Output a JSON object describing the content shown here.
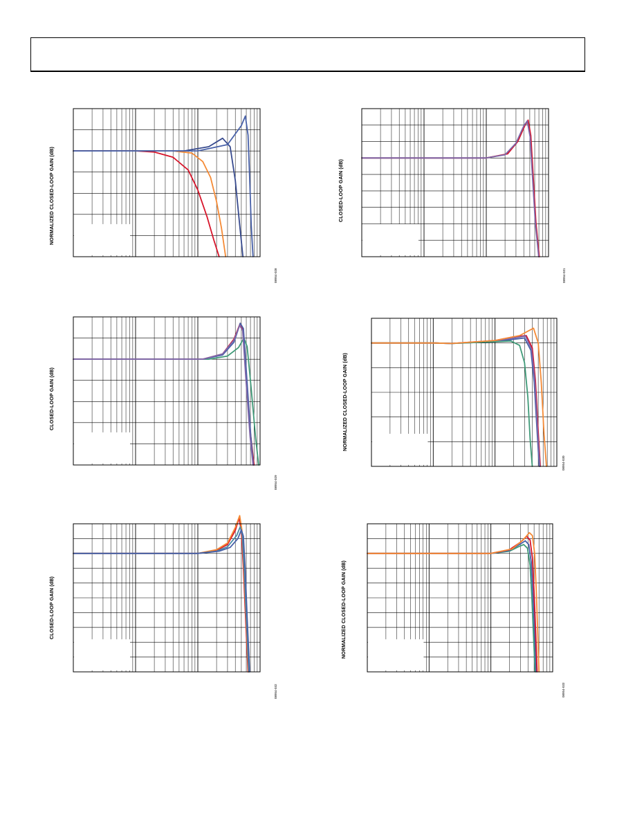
{
  "page": {
    "colors": {
      "red": "#d7142a",
      "orange": "#f58a35",
      "blue": "#4760a8",
      "navy": "#374a8e",
      "purple": "#7f66a8",
      "green": "#3f9a78",
      "teal": "#4a8aa5",
      "grid": "#000000"
    }
  },
  "chart_data": [
    {
      "id": "top-left",
      "type": "line",
      "ylabel": "NORMALIZED CLOSED-LOOP GAIN (dB)",
      "fig_id": "08954-028",
      "xscale": "log",
      "xlim": [
        1,
        1000
      ],
      "ylim": [
        -12,
        2
      ],
      "grid": true,
      "series": [
        {
          "color": "red",
          "x": [
            1,
            10,
            20,
            40,
            70,
            100,
            140,
            180,
            220
          ],
          "y": [
            -2,
            -2,
            -2.1,
            -2.6,
            -3.8,
            -5.7,
            -8.2,
            -10.4,
            -12
          ]
        },
        {
          "color": "orange",
          "x": [
            1,
            40,
            80,
            120,
            160,
            200,
            240,
            280
          ],
          "y": [
            -2,
            -2,
            -2.2,
            -3,
            -4.5,
            -6.8,
            -9.3,
            -12
          ]
        },
        {
          "color": "navy",
          "x": [
            1,
            60,
            150,
            250,
            330,
            400,
            470,
            530
          ],
          "y": [
            -2,
            -2,
            -1.6,
            -0.8,
            -1.6,
            -4.8,
            -9,
            -12
          ]
        },
        {
          "color": "blue",
          "x": [
            1,
            100,
            300,
            500,
            580,
            640,
            680,
            720,
            770
          ],
          "y": [
            -2,
            -2,
            -1.4,
            0.4,
            1.3,
            -0.5,
            -4.5,
            -9,
            -12
          ]
        }
      ]
    },
    {
      "id": "top-right",
      "type": "line",
      "ylabel": "CLOSED-LOOP GAIN (dB)",
      "fig_id": "08954-031",
      "xscale": "log",
      "xlim": [
        1,
        1000
      ],
      "ylim": [
        -14,
        4
      ],
      "grid": true,
      "series": [
        {
          "color": "teal",
          "x": [
            1,
            100,
            200,
            300,
            400,
            460,
            510,
            560,
            620,
            700
          ],
          "y": [
            -2,
            -2,
            -1.6,
            -0.3,
            1.8,
            2.4,
            0.5,
            -4.5,
            -10,
            -14
          ]
        },
        {
          "color": "red",
          "x": [
            1,
            100,
            220,
            320,
            420,
            470,
            520,
            570,
            630,
            710
          ],
          "y": [
            -2,
            -2,
            -1.5,
            0,
            2,
            2.6,
            0.7,
            -4.5,
            -10,
            -14
          ]
        },
        {
          "color": "purple",
          "x": [
            1,
            100,
            200,
            300,
            400,
            455,
            505,
            555,
            615,
            695
          ],
          "y": [
            -2,
            -2,
            -1.6,
            -0.2,
            1.9,
            2.5,
            0.6,
            -4.6,
            -10,
            -14
          ]
        }
      ]
    },
    {
      "id": "middle-left",
      "type": "line",
      "ylabel": "CLOSED-LOOP GAIN (dB)",
      "fig_id": "08954-029",
      "xscale": "log",
      "xlim": [
        1,
        1000
      ],
      "ylim": [
        -10,
        4
      ],
      "grid": true,
      "series": [
        {
          "color": "green",
          "x": [
            1,
            150,
            300,
            450,
            550,
            620,
            720,
            850,
            950
          ],
          "y": [
            0,
            0,
            0.3,
            1.1,
            2,
            1.2,
            -2.8,
            -7.5,
            -10
          ]
        },
        {
          "color": "red",
          "x": [
            1,
            120,
            250,
            380,
            480,
            530,
            600,
            700,
            800
          ],
          "y": [
            0,
            0,
            0.5,
            1.9,
            3.4,
            2.8,
            -1.6,
            -7,
            -10
          ]
        },
        {
          "color": "blue",
          "x": [
            1,
            120,
            250,
            380,
            480,
            540,
            610,
            710,
            780
          ],
          "y": [
            0,
            0,
            0.4,
            1.6,
            3.4,
            2.9,
            -1.7,
            -7.3,
            -10
          ]
        },
        {
          "color": "purple",
          "x": [
            1,
            120,
            250,
            380,
            470,
            525,
            590,
            690,
            770
          ],
          "y": [
            0,
            0,
            0.5,
            1.8,
            3.2,
            2.7,
            -1.8,
            -7.3,
            -10
          ]
        }
      ]
    },
    {
      "id": "middle-right",
      "type": "line",
      "ylabel": "NORMALIZED CLOSED-LOOP GAIN (dB)",
      "fig_id": "08954-030",
      "xscale": "log",
      "xlim": [
        1,
        1000
      ],
      "ylim": [
        -5,
        1
      ],
      "grid": true,
      "series": [
        {
          "color": "blue",
          "x": [
            1,
            10,
            20,
            100,
            200,
            300,
            380,
            430,
            480,
            520
          ],
          "y": [
            0,
            0,
            -0.02,
            0.05,
            0.15,
            0.2,
            -0.3,
            -1.6,
            -3.6,
            -5
          ]
        },
        {
          "color": "red",
          "x": [
            1,
            10,
            20,
            100,
            200,
            320,
            400,
            450,
            500,
            540
          ],
          "y": [
            0,
            0,
            -0.02,
            0.1,
            0.25,
            0.3,
            -0.2,
            -1.5,
            -3.6,
            -5
          ]
        },
        {
          "color": "purple",
          "x": [
            1,
            10,
            20,
            100,
            200,
            310,
            390,
            440,
            490,
            530
          ],
          "y": [
            0,
            0,
            -0.02,
            0.08,
            0.2,
            0.28,
            -0.25,
            -1.5,
            -3.6,
            -5
          ]
        },
        {
          "color": "green",
          "x": [
            1,
            10,
            20,
            100,
            180,
            250,
            300,
            340,
            370,
            400
          ],
          "y": [
            0,
            0,
            -0.02,
            0.05,
            0.08,
            -0.1,
            -0.8,
            -2.2,
            -3.9,
            -5
          ]
        },
        {
          "color": "orange",
          "x": [
            1,
            10,
            20,
            100,
            250,
            420,
            500,
            560,
            620,
            680
          ],
          "y": [
            0,
            0,
            -0.02,
            0.1,
            0.3,
            0.6,
            0,
            -1.6,
            -3.7,
            -5
          ]
        }
      ]
    },
    {
      "id": "bottom-left",
      "type": "line",
      "ylabel": "CLOSED-LOOP GAIN (dB)",
      "fig_id": "08954-032",
      "xscale": "log",
      "xlim": [
        1,
        1000
      ],
      "ylim": [
        -16,
        4
      ],
      "grid": true,
      "series": [
        {
          "color": "red",
          "x": [
            1,
            100,
            200,
            300,
            400,
            460,
            500,
            540,
            580,
            640
          ],
          "y": [
            0,
            0,
            0.4,
            1.2,
            3.1,
            4.8,
            3,
            -2,
            -8,
            -16
          ]
        },
        {
          "color": "orange",
          "x": [
            1,
            100,
            200,
            300,
            400,
            470,
            510,
            550,
            590,
            650
          ],
          "y": [
            0,
            0,
            0.5,
            1.4,
            3.5,
            5.1,
            3.2,
            -2,
            -8,
            -16
          ]
        },
        {
          "color": "teal",
          "x": [
            1,
            100,
            200,
            300,
            420,
            480,
            520,
            560,
            600,
            660
          ],
          "y": [
            0,
            0,
            0.3,
            0.9,
            2.4,
            3.6,
            2.4,
            -2.4,
            -8.4,
            -16
          ]
        },
        {
          "color": "blue",
          "x": [
            1,
            100,
            220,
            330,
            440,
            500,
            540,
            580,
            620,
            680
          ],
          "y": [
            0,
            0,
            0.3,
            0.8,
            2,
            3.2,
            2.3,
            -2.6,
            -8.6,
            -16
          ]
        }
      ]
    },
    {
      "id": "bottom-right",
      "type": "line",
      "ylabel": "NORMALIZED CLOSED-LOOP GAIN (dB)",
      "fig_id": "08954-033",
      "xscale": "log",
      "xlim": [
        1,
        1000
      ],
      "ylim": [
        -8,
        2
      ],
      "grid": true,
      "series": [
        {
          "color": "green",
          "x": [
            1,
            100,
            200,
            280,
            340,
            390,
            430,
            460,
            490,
            520
          ],
          "y": [
            0,
            0,
            0.15,
            0.45,
            0.6,
            0.35,
            -0.8,
            -3,
            -5.6,
            -8
          ]
        },
        {
          "color": "blue",
          "x": [
            1,
            100,
            200,
            290,
            360,
            410,
            450,
            480,
            510,
            540
          ],
          "y": [
            0,
            0,
            0.2,
            0.6,
            0.85,
            0.6,
            -0.6,
            -2.8,
            -5.4,
            -8
          ]
        },
        {
          "color": "red",
          "x": [
            1,
            100,
            200,
            300,
            380,
            430,
            470,
            500,
            530,
            560
          ],
          "y": [
            0,
            0,
            0.25,
            0.75,
            1.15,
            0.9,
            -0.3,
            -2.6,
            -5.3,
            -8
          ]
        },
        {
          "color": "orange",
          "x": [
            1,
            100,
            220,
            330,
            420,
            470,
            510,
            540,
            570,
            600
          ],
          "y": [
            0,
            0,
            0.3,
            0.9,
            1.4,
            1.2,
            0,
            -2.3,
            -5.1,
            -8
          ]
        }
      ]
    }
  ]
}
